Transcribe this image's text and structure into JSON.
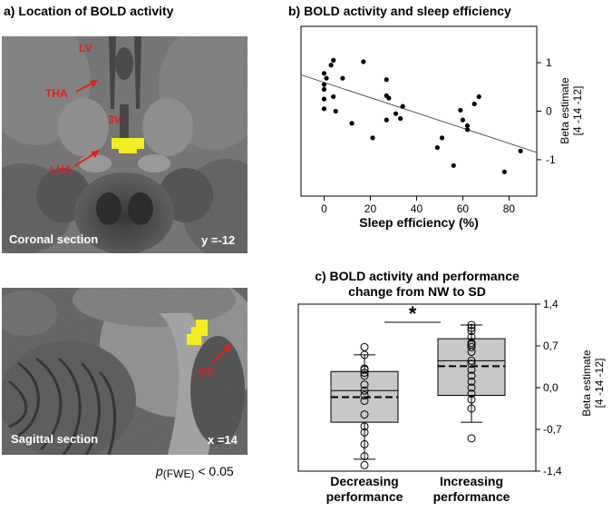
{
  "panel_a": {
    "title": "a) Location of BOLD activity",
    "coronal": {
      "section_label": "Coronal section",
      "coord_label": "y =-12",
      "labels": [
        "LV",
        "THA",
        "3V",
        "LHA"
      ]
    },
    "sagittal": {
      "section_label": "Sagittal section",
      "coord_label": "x =14",
      "labels": [
        "OC"
      ]
    },
    "threshold": {
      "p": "p",
      "sub": "(FWE)",
      "rest": " < 0.05"
    },
    "colors": {
      "activation": "#f2ee20",
      "annotation": "#e0201c"
    }
  },
  "chart_data": [
    {
      "type": "scatter",
      "title": "b) BOLD activity and sleep efficiency",
      "xlabel": "Sleep efficiency (%)",
      "ylabel": [
        "Beta estimate",
        "[4 -14 -12]"
      ],
      "xlim": [
        -10,
        92
      ],
      "ylim": [
        -1.75,
        1.75
      ],
      "xticks": [
        "0",
        "20",
        "40",
        "60",
        "80"
      ],
      "xtick_values": [
        0,
        20,
        40,
        60,
        80
      ],
      "yticks": [
        "1",
        "0",
        "-1"
      ],
      "ytick_values": [
        1,
        0,
        -1
      ],
      "trendline": {
        "x": [
          -10,
          92
        ],
        "y": [
          0.75,
          -0.85
        ]
      },
      "points": [
        {
          "x": 0,
          "y": 0.78
        },
        {
          "x": 0,
          "y": 0.55
        },
        {
          "x": 0,
          "y": 0.45
        },
        {
          "x": 0,
          "y": 0.25
        },
        {
          "x": 0,
          "y": 0.05
        },
        {
          "x": 1,
          "y": 0.68
        },
        {
          "x": 3,
          "y": 0.95
        },
        {
          "x": 4,
          "y": 1.05
        },
        {
          "x": 4,
          "y": 0.3
        },
        {
          "x": 5,
          "y": 0.0
        },
        {
          "x": 8,
          "y": 0.68
        },
        {
          "x": 12,
          "y": -0.25
        },
        {
          "x": 17,
          "y": 1.02
        },
        {
          "x": 21,
          "y": -0.55
        },
        {
          "x": 27,
          "y": 0.65
        },
        {
          "x": 27,
          "y": 0.32
        },
        {
          "x": 28,
          "y": 0.27
        },
        {
          "x": 27,
          "y": -0.18
        },
        {
          "x": 31,
          "y": -0.05
        },
        {
          "x": 33,
          "y": -0.15
        },
        {
          "x": 34,
          "y": 0.1
        },
        {
          "x": 49,
          "y": -0.75
        },
        {
          "x": 51,
          "y": -0.55
        },
        {
          "x": 56,
          "y": -1.12
        },
        {
          "x": 59,
          "y": 0.02
        },
        {
          "x": 60,
          "y": -0.18
        },
        {
          "x": 62,
          "y": -0.38
        },
        {
          "x": 62,
          "y": -0.3
        },
        {
          "x": 65,
          "y": 0.15
        },
        {
          "x": 67,
          "y": 0.3
        },
        {
          "x": 78,
          "y": -1.25
        },
        {
          "x": 85,
          "y": -0.82
        }
      ],
      "grid": false
    },
    {
      "type": "box",
      "title": [
        "c) BOLD activity and performance",
        "change from NW to SD"
      ],
      "ylabel": [
        "Beta estimate",
        "[4 -14 -12]"
      ],
      "ylim": [
        -1.4,
        1.4
      ],
      "yticks": [
        "1,4",
        "0,7",
        "0,0",
        "-0,7",
        "-1,4"
      ],
      "ytick_values": [
        1.4,
        0.7,
        0.0,
        -0.7,
        -1.4
      ],
      "significance": "*",
      "groups": [
        {
          "label": [
            "Decreasing",
            "performance"
          ],
          "q1": -0.58,
          "median": -0.05,
          "q3": 0.27,
          "mean": -0.16,
          "whisker_low": -1.2,
          "whisker_high": 0.55,
          "points": [
            0.68,
            0.55,
            0.32,
            0.3,
            0.25,
            0.2,
            0.05,
            -0.05,
            -0.13,
            -0.22,
            -0.45,
            -0.65,
            -0.75,
            -0.95,
            -1.15,
            -1.3
          ]
        },
        {
          "label": [
            "Increasing",
            "performance"
          ],
          "q1": -0.13,
          "median": 0.45,
          "q3": 0.82,
          "mean": 0.36,
          "whisker_low": -0.58,
          "whisker_high": 1.05,
          "points": [
            1.05,
            1.0,
            0.95,
            0.85,
            0.75,
            0.72,
            0.68,
            0.6,
            0.45,
            0.4,
            0.3,
            0.2,
            0.1,
            0.0,
            -0.1,
            -0.2,
            -0.35,
            -0.85
          ]
        }
      ]
    }
  ]
}
